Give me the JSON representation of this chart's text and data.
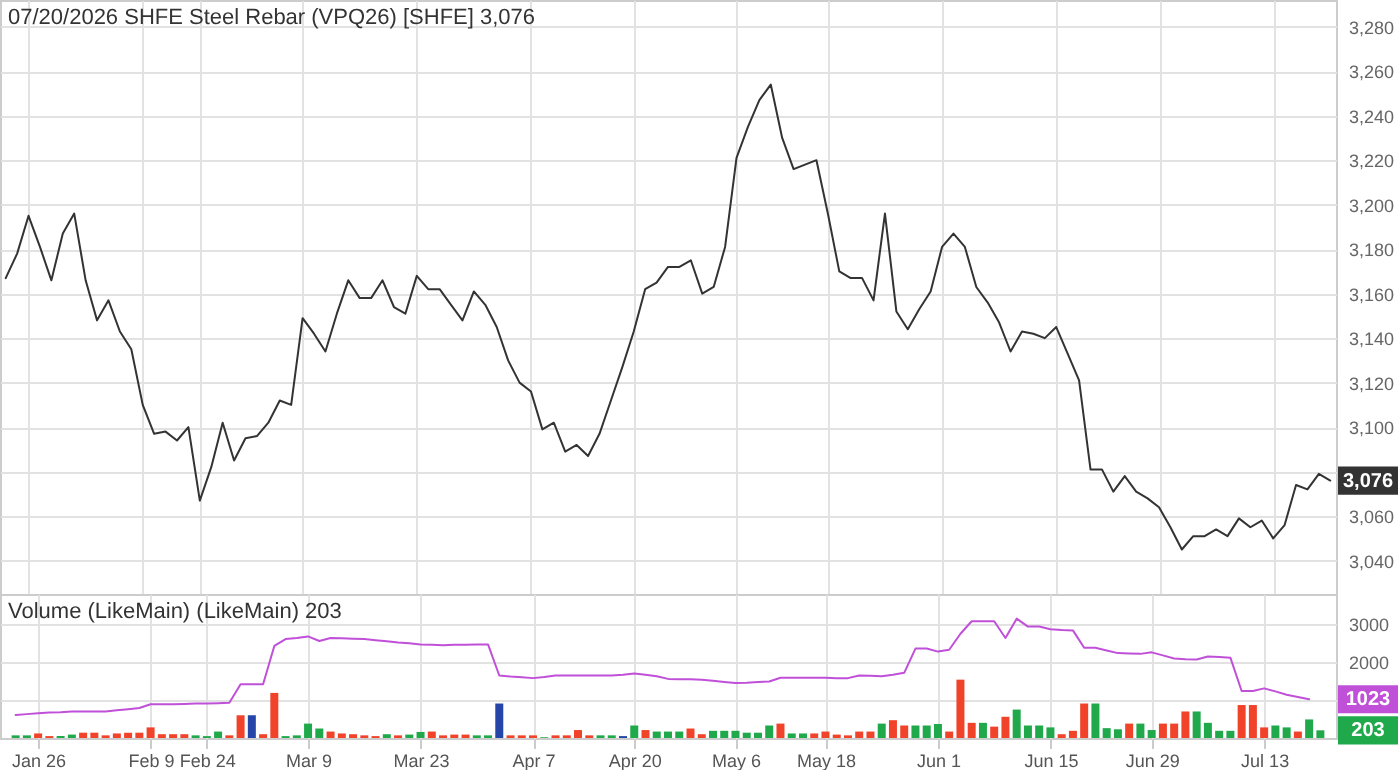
{
  "chart_data": [
    {
      "type": "line",
      "title": "07/20/2026 SHFE Steel Rebar (VPQ26) [SHFE] 3,076",
      "categories": [
        null,
        null,
        null,
        null,
        null,
        null,
        null,
        null,
        null,
        null,
        null,
        null,
        null,
        null,
        null,
        null,
        null,
        null,
        null,
        null,
        null,
        null,
        null,
        null,
        null,
        null,
        null,
        null,
        null,
        null,
        null,
        null,
        null,
        null,
        null,
        null,
        null,
        null,
        null,
        null,
        null,
        null,
        null,
        null,
        null,
        null,
        null,
        null,
        null,
        null,
        null,
        null,
        null,
        null,
        null,
        null,
        null,
        null,
        null,
        null,
        null,
        null,
        null,
        null,
        null,
        null,
        null,
        null,
        null,
        null,
        null,
        null,
        null,
        null,
        null,
        null,
        null,
        null,
        null,
        null,
        null,
        null,
        null,
        null,
        null,
        null,
        null,
        null,
        null,
        null,
        null,
        null,
        null,
        null,
        null,
        null,
        null,
        null,
        null,
        null,
        null,
        null,
        null,
        null,
        null,
        null,
        null,
        null,
        null,
        null,
        null,
        null,
        null,
        null,
        null,
        null,
        null
      ],
      "series": [
        {
          "color": "#333333",
          "values": [
            3167,
            3178,
            3195,
            3181,
            3166,
            3187,
            3196,
            3166,
            3148,
            3157,
            3143,
            3135,
            3110,
            3097,
            3098,
            3094,
            3100,
            3067,
            3082,
            3102,
            3085,
            3095,
            3096,
            3102,
            3112,
            3110,
            3149,
            3142,
            3134,
            3151,
            3166,
            3158,
            3158,
            3166,
            3154,
            3151,
            3168,
            3162,
            3162,
            3155,
            3148,
            3161,
            3155,
            3145,
            3130,
            3120,
            3116,
            3099,
            3102,
            3089,
            3092,
            3087,
            3097,
            3112,
            3127,
            3143,
            3162,
            3165,
            3172,
            3172,
            3175,
            3160,
            3163,
            3181,
            3221,
            3235,
            3247,
            3254,
            3230,
            3216,
            3218,
            3220,
            3196,
            3170,
            3167,
            3167,
            3157,
            3196,
            3152,
            3144,
            3153,
            3161,
            3181,
            3187,
            3181,
            3163,
            3156,
            3147,
            3134,
            3143,
            3142,
            3140,
            3145,
            3133,
            3121,
            3081,
            3081,
            3071,
            3078,
            3071,
            3068,
            3064,
            3055,
            3045,
            3051,
            3051,
            3054,
            3051,
            3059,
            3055,
            3058,
            3050,
            3056,
            3074,
            3072,
            3079,
            3076
          ]
        }
      ],
      "ylim": [
        3025,
        3292
      ],
      "yticks": [
        {
          "value": 3040,
          "label": "3,040"
        },
        {
          "value": 3060,
          "label": "3,060"
        },
        {
          "value": 3080,
          "label": null
        },
        {
          "value": 3100,
          "label": "3,100"
        },
        {
          "value": 3120,
          "label": "3,120"
        },
        {
          "value": 3140,
          "label": "3,140"
        },
        {
          "value": 3160,
          "label": "3,160"
        },
        {
          "value": 3180,
          "label": "3,180"
        },
        {
          "value": 3200,
          "label": "3,200"
        },
        {
          "value": 3220,
          "label": "3,220"
        },
        {
          "value": 3240,
          "label": "3,240"
        },
        {
          "value": 3260,
          "label": "3,260"
        },
        {
          "value": 3280,
          "label": "3,280"
        }
      ],
      "grid": true,
      "annotations": [
        "3,076"
      ]
    },
    {
      "type": "bar",
      "title": "Volume (LikeMain)  (LikeMain) 203",
      "categories": [
        null,
        null,
        "Jan 26",
        null,
        null,
        null,
        null,
        null,
        null,
        null,
        null,
        null,
        "Feb 9",
        null,
        null,
        null,
        null,
        "Feb 24",
        null,
        null,
        null,
        null,
        null,
        null,
        null,
        null,
        "Mar 9",
        null,
        null,
        null,
        null,
        null,
        null,
        null,
        null,
        null,
        "Mar 23",
        null,
        null,
        null,
        null,
        null,
        null,
        null,
        null,
        null,
        "Apr 7",
        null,
        null,
        null,
        null,
        null,
        null,
        null,
        null,
        "Apr 20",
        null,
        null,
        null,
        null,
        null,
        null,
        null,
        null,
        "May 6",
        null,
        null,
        null,
        null,
        null,
        null,
        null,
        "May 18",
        null,
        null,
        null,
        null,
        null,
        null,
        null,
        null,
        null,
        "Jun 1",
        null,
        null,
        null,
        null,
        null,
        null,
        null,
        null,
        null,
        "Jun 15",
        null,
        null,
        null,
        null,
        null,
        null,
        null,
        null,
        "Jun 29",
        null,
        null,
        null,
        null,
        null,
        null,
        null,
        null,
        null,
        "Jul 13",
        null,
        null,
        null,
        null,
        null
      ],
      "series": [
        {
          "values": [
            70,
            70,
            120,
            50,
            50,
            90,
            140,
            140,
            70,
            120,
            140,
            140,
            280,
            100,
            100,
            100,
            70,
            50,
            170,
            70,
            600,
            600,
            100,
            1190,
            50,
            70,
            380,
            250,
            170,
            120,
            100,
            70,
            50,
            100,
            70,
            90,
            160,
            170,
            70,
            90,
            90,
            70,
            70,
            910,
            70,
            70,
            70,
            20,
            70,
            70,
            210,
            70,
            70,
            70,
            50,
            330,
            210,
            170,
            170,
            170,
            250,
            100,
            190,
            190,
            190,
            140,
            140,
            330,
            380,
            120,
            120,
            120,
            170,
            90,
            70,
            170,
            170,
            380,
            470,
            330,
            330,
            330,
            370,
            170,
            1540,
            400,
            400,
            300,
            560,
            750,
            330,
            330,
            280,
            100,
            190,
            910,
            910,
            260,
            230,
            380,
            380,
            210,
            380,
            380,
            700,
            700,
            400,
            190,
            190,
            870,
            870,
            280,
            330,
            280,
            170,
            490,
            203
          ],
          "colors": [
            "#1fa94a",
            "#1fa94a",
            "#f0432a",
            "#f0432a",
            "#1fa94a",
            "#1fa94a",
            "#f0432a",
            "#f0432a",
            "#f0432a",
            "#f0432a",
            "#f0432a",
            "#f0432a",
            "#f0432a",
            "#f0432a",
            "#f0432a",
            "#f0432a",
            "#1fa94a",
            "#1fa94a",
            "#1fa94a",
            "#f0432a",
            "#f0432a",
            "#2545a8",
            "#f0432a",
            "#f0432a",
            "#1fa94a",
            "#1fa94a",
            "#1fa94a",
            "#1fa94a",
            "#f0432a",
            "#f0432a",
            "#f0432a",
            "#f0432a",
            "#f0432a",
            "#1fa94a",
            "#f0432a",
            "#1fa94a",
            "#1fa94a",
            "#f0432a",
            "#f0432a",
            "#f0432a",
            "#f0432a",
            "#1fa94a",
            "#1fa94a",
            "#2545a8",
            "#f0432a",
            "#f0432a",
            "#f0432a",
            "#1fa94a",
            "#f0432a",
            "#f0432a",
            "#f0432a",
            "#f0432a",
            "#1fa94a",
            "#1fa94a",
            "#2545a8",
            "#1fa94a",
            "#f0432a",
            "#1fa94a",
            "#1fa94a",
            "#1fa94a",
            "#f0432a",
            "#f0432a",
            "#1fa94a",
            "#1fa94a",
            "#1fa94a",
            "#1fa94a",
            "#1fa94a",
            "#1fa94a",
            "#f0432a",
            "#1fa94a",
            "#1fa94a",
            "#f0432a",
            "#f0432a",
            "#f0432a",
            "#f0432a",
            "#f0432a",
            "#f0432a",
            "#1fa94a",
            "#f0432a",
            "#f0432a",
            "#1fa94a",
            "#1fa94a",
            "#1fa94a",
            "#f0432a",
            "#f0432a",
            "#f0432a",
            "#1fa94a",
            "#f0432a",
            "#f0432a",
            "#1fa94a",
            "#1fa94a",
            "#1fa94a",
            "#1fa94a",
            "#f0432a",
            "#f0432a",
            "#f0432a",
            "#1fa94a",
            "#1fa94a",
            "#1fa94a",
            "#f0432a",
            "#1fa94a",
            "#1fa94a",
            "#f0432a",
            "#f0432a",
            "#f0432a",
            "#1fa94a",
            "#1fa94a",
            "#1fa94a",
            "#1fa94a",
            "#f0432a",
            "#f0432a",
            "#f0432a",
            "#1fa94a",
            "#1fa94a",
            "#f0432a",
            "#1fa94a",
            "#1fa94a"
          ]
        },
        {
          "type": "line",
          "color": "#c050d8",
          "values": [
            610,
            630,
            650,
            670,
            680,
            700,
            700,
            700,
            700,
            730,
            760,
            790,
            890,
            890,
            890,
            900,
            910,
            910,
            920,
            930,
            1420,
            1420,
            1420,
            2430,
            2610,
            2640,
            2680,
            2560,
            2640,
            2630,
            2620,
            2610,
            2580,
            2550,
            2520,
            2500,
            2470,
            2460,
            2450,
            2460,
            2460,
            2470,
            2470,
            1650,
            1620,
            1600,
            1580,
            1610,
            1650,
            1650,
            1650,
            1650,
            1650,
            1650,
            1670,
            1700,
            1670,
            1630,
            1560,
            1550,
            1550,
            1540,
            1510,
            1480,
            1450,
            1460,
            1480,
            1490,
            1590,
            1590,
            1590,
            1590,
            1590,
            1580,
            1580,
            1650,
            1640,
            1630,
            1670,
            1720,
            2360,
            2360,
            2280,
            2330,
            2750,
            3080,
            3080,
            3080,
            2640,
            3150,
            2940,
            2940,
            2870,
            2850,
            2840,
            2380,
            2380,
            2310,
            2240,
            2230,
            2220,
            2260,
            2180,
            2100,
            2080,
            2070,
            2150,
            2140,
            2120,
            1240,
            1240,
            1310,
            1230,
            1140,
            1080,
            1023,
            null
          ]
        }
      ],
      "ylim": [
        0,
        3800
      ],
      "yticks": [
        {
          "value": 1000,
          "label": null
        },
        2000,
        3000
      ],
      "grid": true,
      "annotations": [
        "203",
        "1023"
      ]
    }
  ]
}
